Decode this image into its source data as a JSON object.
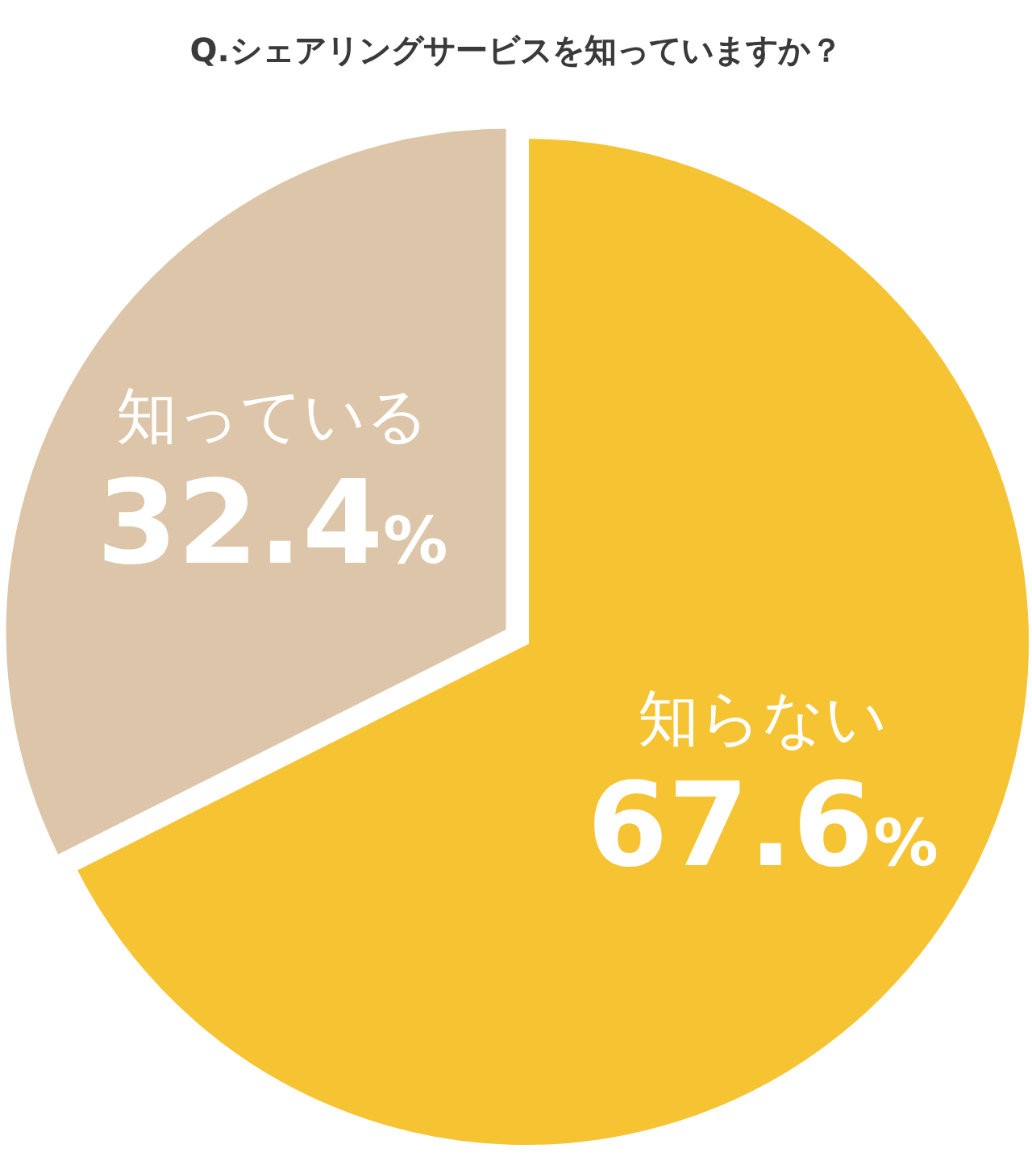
{
  "chart_data": {
    "type": "pie",
    "title": "Q.シェアリングサービスを知っていますか？",
    "categories": [
      "知らない",
      "知っている"
    ],
    "values": [
      67.6,
      32.4
    ],
    "colors": [
      "#f6c332",
      "#dcc5a8"
    ],
    "value_labels": [
      "67.6%",
      "32.4%"
    ]
  }
}
